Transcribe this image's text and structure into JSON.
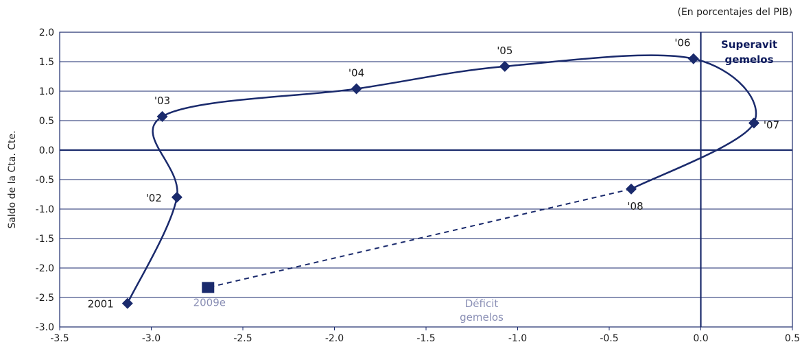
{
  "chart_data": {
    "type": "line",
    "unit_note": "(En porcentajes del PIB)",
    "ylabel": "Saldo de la Cta. Cte.",
    "xlabel": "",
    "xlim": [
      -3.5,
      0.5
    ],
    "ylim": [
      -3.0,
      2.0
    ],
    "x_ticks": [
      "-3.5",
      "-3.0",
      "-2.5",
      "-2.0",
      "-1.5",
      "-1.0",
      "-0.5",
      "0.0",
      "0.5"
    ],
    "y_ticks": [
      "2.0",
      "1.5",
      "1.0",
      "0.5",
      "0.0",
      "-0.5",
      "-1.0",
      "-1.5",
      "-2.0",
      "-2.5",
      "-3.0"
    ],
    "points": [
      {
        "label": "2001",
        "x": -3.13,
        "y": -2.6
      },
      {
        "label": "'02",
        "x": -2.86,
        "y": -0.8
      },
      {
        "label": "'03",
        "x": -2.94,
        "y": 0.57
      },
      {
        "label": "'04",
        "x": -1.88,
        "y": 1.04
      },
      {
        "label": "'05",
        "x": -1.07,
        "y": 1.42
      },
      {
        "label": "'06",
        "x": -0.04,
        "y": 1.55
      },
      {
        "label": "'07",
        "x": 0.29,
        "y": 0.46
      },
      {
        "label": "'08",
        "x": -0.38,
        "y": -0.66
      }
    ],
    "estimate": {
      "label": "2009e",
      "x": -2.69,
      "y": -2.33
    },
    "annotations": {
      "surplus": [
        "Superavit",
        "gemelos"
      ],
      "deficit": [
        "Déficit",
        "gemelos"
      ]
    },
    "colors": {
      "line": "#1a2a6c",
      "grid": "#1a2a6c",
      "muted_text": "#8a8fb5"
    }
  }
}
